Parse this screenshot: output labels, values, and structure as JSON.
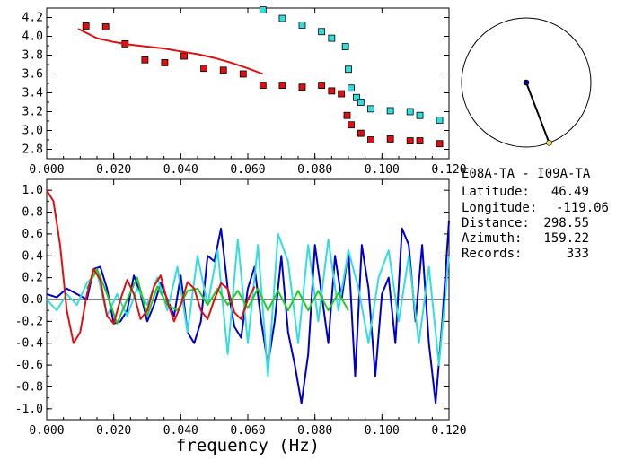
{
  "station": {
    "title": "E08A-TA  - I09A-TA",
    "rows": [
      {
        "label": "Latitude:",
        "value": "46.49"
      },
      {
        "label": "Longitude:",
        "value": "-119.06"
      },
      {
        "label": "Distance:",
        "value": "298.55"
      },
      {
        "label": "Azimuth:",
        "value": "159.22"
      },
      {
        "label": "Records:",
        "value": "333"
      }
    ]
  },
  "azimuth_dial": {
    "azimuth_deg": 159.22,
    "center_color": "#000080",
    "tip_color": "#f0e060"
  },
  "chart_data": [
    {
      "type": "scatter",
      "xlim": [
        0.0,
        0.12
      ],
      "ylim": [
        2.7,
        4.3
      ],
      "x_ticks": [
        "0.000",
        "0.020",
        "0.040",
        "0.060",
        "0.080",
        "0.100",
        "0.120"
      ],
      "y_ticks": [
        "2.8",
        "3.0",
        "3.2",
        "3.4",
        "3.6",
        "3.8",
        "4.0",
        "4.2"
      ],
      "series": [
        {
          "color": "#dd1111",
          "marker": "square",
          "x": [
            0.0117,
            0.0176,
            0.0234,
            0.0293,
            0.0352,
            0.041,
            0.0469,
            0.0527,
            0.0586,
            0.0645,
            0.0703,
            0.0762,
            0.082,
            0.085,
            0.0879,
            0.0896,
            0.0908,
            0.0937,
            0.0967,
            0.1025,
            0.1084,
            0.1113,
            0.1172
          ],
          "y": [
            4.11,
            4.1,
            3.92,
            3.75,
            3.72,
            3.79,
            3.66,
            3.64,
            3.6,
            3.48,
            3.48,
            3.46,
            3.48,
            3.42,
            3.39,
            3.16,
            3.06,
            2.97,
            2.9,
            2.91,
            2.89,
            2.89,
            2.86
          ]
        },
        {
          "color": "#33dddd",
          "marker": "square",
          "x": [
            0.0645,
            0.0703,
            0.0762,
            0.082,
            0.085,
            0.0891,
            0.09,
            0.0908,
            0.0924,
            0.0937,
            0.0967,
            0.1025,
            0.1084,
            0.1113,
            0.1172
          ],
          "y": [
            4.28,
            4.19,
            4.12,
            4.05,
            3.98,
            3.89,
            3.65,
            3.45,
            3.35,
            3.3,
            3.23,
            3.21,
            3.2,
            3.16,
            3.11
          ]
        },
        {
          "type": "line",
          "color": "#dd1111",
          "x": [
            0.0094,
            0.015,
            0.02,
            0.025,
            0.03,
            0.035,
            0.04,
            0.045,
            0.05,
            0.055,
            0.06,
            0.0645
          ],
          "y": [
            4.08,
            3.98,
            3.94,
            3.91,
            3.89,
            3.87,
            3.84,
            3.81,
            3.77,
            3.72,
            3.66,
            3.6
          ]
        }
      ]
    },
    {
      "type": "line",
      "xlim": [
        0.0,
        0.12
      ],
      "ylim": [
        -1.1,
        1.1
      ],
      "x_ticks": [
        "0.000",
        "0.020",
        "0.040",
        "0.060",
        "0.080",
        "0.100",
        "0.120"
      ],
      "y_ticks": [
        "1.0",
        "0.8",
        "0.6",
        "0.4",
        "0.2",
        "0.0",
        "-0.2",
        "-0.4",
        "-0.6",
        "-0.8",
        "-1.0"
      ],
      "xlabel": "frequency (Hz)",
      "zero_line": true,
      "series": [
        {
          "color": "#0000cc",
          "x": [
            0.0,
            0.003,
            0.006,
            0.009,
            0.012,
            0.014,
            0.016,
            0.018,
            0.02,
            0.022,
            0.024,
            0.026,
            0.028,
            0.03,
            0.032,
            0.034,
            0.036,
            0.038,
            0.04,
            0.042,
            0.044,
            0.046,
            0.048,
            0.05,
            0.052,
            0.054,
            0.056,
            0.058,
            0.06,
            0.062,
            0.064,
            0.066,
            0.068,
            0.07,
            0.072,
            0.074,
            0.076,
            0.078,
            0.08,
            0.082,
            0.084,
            0.086,
            0.088,
            0.09,
            0.092,
            0.094,
            0.096,
            0.098,
            0.1,
            0.102,
            0.104,
            0.106,
            0.108,
            0.11,
            0.112,
            0.114,
            0.116,
            0.118,
            0.12
          ],
          "y": [
            0.05,
            0.02,
            0.1,
            0.05,
            0.0,
            0.28,
            0.3,
            0.1,
            -0.22,
            -0.2,
            -0.1,
            0.22,
            0.05,
            -0.2,
            -0.05,
            0.15,
            0.0,
            -0.15,
            0.22,
            -0.3,
            -0.4,
            -0.2,
            0.4,
            0.35,
            0.65,
            0.1,
            -0.25,
            -0.35,
            0.1,
            0.3,
            -0.2,
            -0.6,
            -0.2,
            0.4,
            -0.3,
            -0.6,
            -0.95,
            -0.5,
            0.5,
            0.05,
            -0.4,
            0.4,
            0.0,
            0.45,
            -0.7,
            0.5,
            0.1,
            -0.7,
            0.05,
            0.2,
            -0.4,
            0.65,
            0.5,
            -0.2,
            0.5,
            -0.4,
            -0.95,
            -0.2,
            0.72
          ]
        },
        {
          "color": "#33dddd",
          "x": [
            0.0,
            0.003,
            0.006,
            0.009,
            0.012,
            0.015,
            0.018,
            0.021,
            0.024,
            0.027,
            0.03,
            0.033,
            0.036,
            0.039,
            0.042,
            0.045,
            0.048,
            0.051,
            0.054,
            0.057,
            0.06,
            0.063,
            0.066,
            0.069,
            0.072,
            0.075,
            0.078,
            0.081,
            0.084,
            0.087,
            0.09,
            0.093,
            0.096,
            0.099,
            0.102,
            0.105,
            0.108,
            0.111,
            0.114,
            0.117,
            0.12
          ],
          "y": [
            0.0,
            -0.1,
            0.05,
            -0.05,
            0.15,
            0.25,
            -0.15,
            0.05,
            -0.15,
            0.1,
            -0.05,
            0.2,
            -0.1,
            0.3,
            -0.3,
            0.4,
            -0.05,
            0.45,
            -0.5,
            0.55,
            -0.4,
            0.5,
            -0.7,
            0.6,
            0.35,
            -0.4,
            0.5,
            -0.2,
            0.55,
            -0.1,
            0.45,
            0.1,
            -0.4,
            0.2,
            0.45,
            -0.2,
            0.4,
            -0.4,
            0.3,
            -0.6,
            0.4
          ]
        },
        {
          "color": "#22cc22",
          "x": [
            0.012,
            0.015,
            0.018,
            0.021,
            0.024,
            0.027,
            0.03,
            0.033,
            0.036,
            0.039,
            0.042,
            0.045,
            0.048,
            0.051,
            0.054,
            0.057,
            0.06,
            0.063,
            0.066,
            0.069,
            0.072,
            0.075,
            0.078,
            0.081,
            0.084,
            0.087,
            0.09
          ],
          "y": [
            0.1,
            0.28,
            0.05,
            -0.22,
            0.0,
            0.2,
            -0.15,
            0.12,
            -0.05,
            -0.1,
            0.08,
            0.1,
            -0.05,
            0.1,
            -0.05,
            0.08,
            -0.08,
            0.1,
            -0.1,
            0.08,
            -0.1,
            0.08,
            -0.1,
            0.08,
            -0.1,
            0.06,
            -0.1
          ]
        },
        {
          "color": "#dd1111",
          "x": [
            0.0,
            0.002,
            0.004,
            0.006,
            0.008,
            0.01,
            0.012,
            0.014,
            0.016,
            0.018,
            0.02,
            0.022,
            0.024,
            0.026,
            0.028,
            0.03,
            0.032,
            0.034,
            0.036,
            0.038,
            0.04,
            0.042,
            0.044,
            0.046,
            0.048,
            0.05,
            0.052,
            0.054,
            0.056,
            0.058,
            0.06,
            0.062
          ],
          "y": [
            1.0,
            0.9,
            0.5,
            -0.1,
            -0.4,
            -0.3,
            0.05,
            0.28,
            0.18,
            -0.15,
            -0.22,
            0.0,
            0.18,
            0.05,
            -0.18,
            -0.1,
            0.12,
            0.22,
            -0.02,
            -0.2,
            -0.05,
            0.16,
            0.1,
            -0.1,
            -0.18,
            0.0,
            0.15,
            0.1,
            -0.12,
            -0.18,
            0.0,
            0.12
          ]
        }
      ]
    }
  ]
}
